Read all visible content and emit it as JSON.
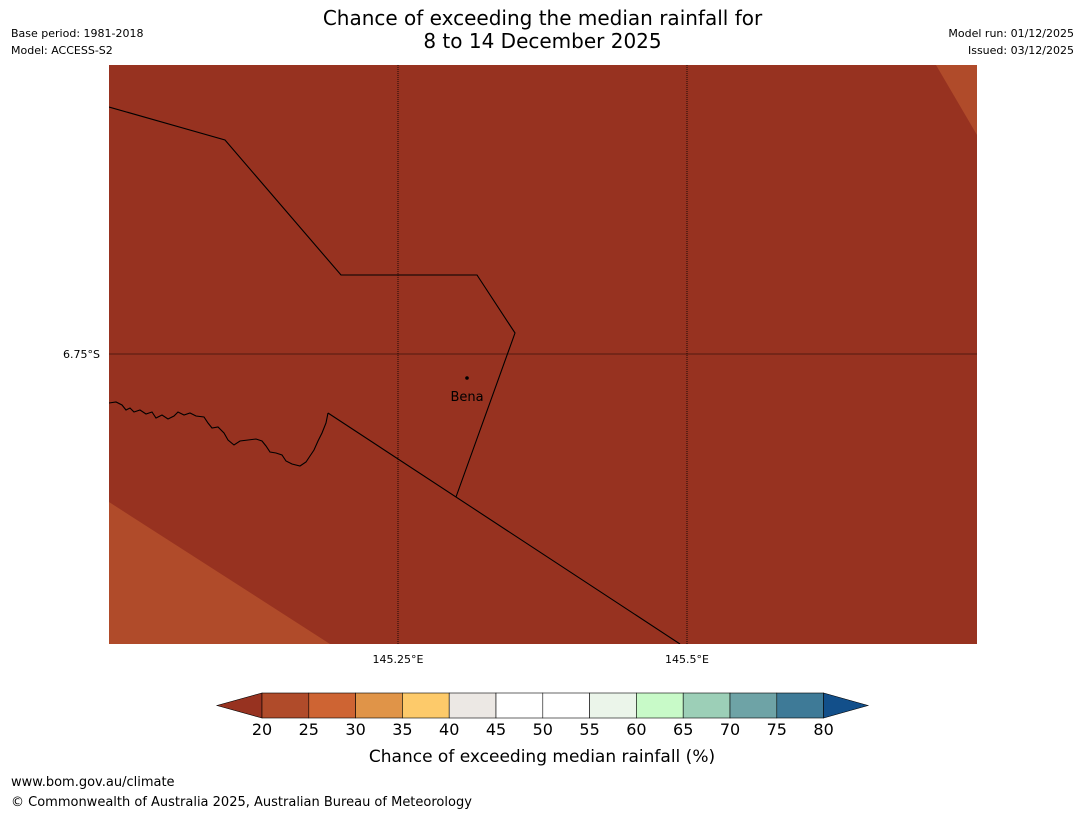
{
  "header": {
    "title_line1": "Chance of exceeding the median rainfall for",
    "title_line2": "8 to 14 December 2025",
    "base_period": "Base period: 1981-2018",
    "model": "Model: ACCESS-S2",
    "model_run": "Model run: 01/12/2025",
    "issued": "Issued: 03/12/2025"
  },
  "map": {
    "lat_label": "6.75°S",
    "lon_labels": [
      "145.25°E",
      "145.5°E"
    ],
    "place": {
      "name": "Bena"
    },
    "fill_colors": {
      "primary": "#973220",
      "secondary": "#B04B2A"
    }
  },
  "colorbar": {
    "ticks": [
      "20",
      "25",
      "30",
      "35",
      "40",
      "45",
      "50",
      "55",
      "60",
      "65",
      "70",
      "75",
      "80"
    ],
    "colors": [
      "#B04B2A",
      "#CE6433",
      "#E09448",
      "#FDCA6A",
      "#ECE8E4",
      "#FFFFFF",
      "#FFFFFF",
      "#EBF5EA",
      "#C8FAC8",
      "#9CCFB7",
      "#6EA3A6",
      "#3E7A97"
    ],
    "under_color": "#973220",
    "over_color": "#124F8A",
    "label": "Chance of exceeding median rainfall (%)"
  },
  "footer": {
    "url": "www.bom.gov.au/climate",
    "copyright": "© Commonwealth of Australia 2025, Australian Bureau of Meteorology"
  }
}
